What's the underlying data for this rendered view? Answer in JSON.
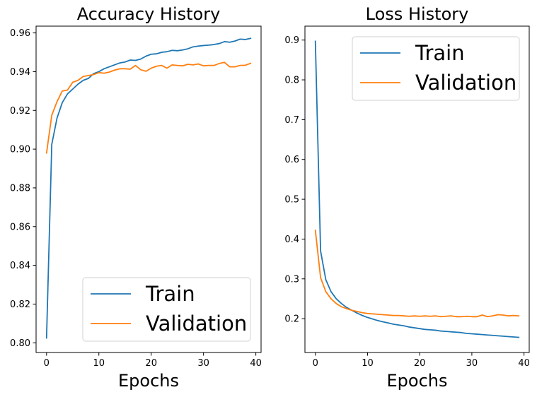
{
  "chart_data": [
    {
      "type": "line",
      "title": "Accuracy History",
      "xlabel": "Epochs",
      "ylabel": "",
      "xlim": [
        -2,
        41
      ],
      "ylim": [
        0.795,
        0.9635
      ],
      "xticks": [
        0,
        10,
        20,
        30,
        40
      ],
      "yticks": [
        0.8,
        0.82,
        0.84,
        0.86,
        0.88,
        0.9,
        0.92,
        0.94,
        0.96
      ],
      "legend_position": "lower-right",
      "x": [
        0,
        1,
        2,
        3,
        4,
        5,
        6,
        7,
        8,
        9,
        10,
        11,
        12,
        13,
        14,
        15,
        16,
        17,
        18,
        19,
        20,
        21,
        22,
        23,
        24,
        25,
        26,
        27,
        28,
        29,
        30,
        31,
        32,
        33,
        34,
        35,
        36,
        37,
        38,
        39
      ],
      "series": [
        {
          "name": "Train",
          "color": "#1f77b4",
          "values": [
            0.8025,
            0.9025,
            0.916,
            0.924,
            0.9285,
            0.931,
            0.9335,
            0.9355,
            0.9365,
            0.939,
            0.94,
            0.9415,
            0.9425,
            0.9435,
            0.9445,
            0.945,
            0.946,
            0.9458,
            0.9465,
            0.948,
            0.949,
            0.9492,
            0.95,
            0.9503,
            0.951,
            0.9508,
            0.9512,
            0.9518,
            0.9528,
            0.9532,
            0.9535,
            0.9537,
            0.954,
            0.9545,
            0.9555,
            0.9552,
            0.9558,
            0.9568,
            0.9566,
            0.9572
          ]
        },
        {
          "name": "Validation",
          "color": "#ff7f0e",
          "values": [
            0.898,
            0.9175,
            0.9245,
            0.93,
            0.9305,
            0.9345,
            0.9355,
            0.9375,
            0.938,
            0.9385,
            0.9395,
            0.9392,
            0.9398,
            0.9408,
            0.9415,
            0.9415,
            0.9413,
            0.9432,
            0.941,
            0.9402,
            0.9418,
            0.9428,
            0.9432,
            0.9418,
            0.9435,
            0.9432,
            0.943,
            0.9438,
            0.9435,
            0.944,
            0.943,
            0.9432,
            0.9432,
            0.9442,
            0.9448,
            0.9425,
            0.9425,
            0.9432,
            0.9433,
            0.9443
          ]
        }
      ]
    },
    {
      "type": "line",
      "title": "Loss History",
      "xlabel": "Epochs",
      "ylabel": "",
      "xlim": [
        -2,
        41
      ],
      "ylim": [
        0.115,
        0.935
      ],
      "xticks": [
        0,
        10,
        20,
        30,
        40
      ],
      "yticks": [
        0.2,
        0.3,
        0.4,
        0.5,
        0.6,
        0.7,
        0.8,
        0.9
      ],
      "legend_position": "upper-right",
      "x": [
        0,
        1,
        2,
        3,
        4,
        5,
        6,
        7,
        8,
        9,
        10,
        11,
        12,
        13,
        14,
        15,
        16,
        17,
        18,
        19,
        20,
        21,
        22,
        23,
        24,
        25,
        26,
        27,
        28,
        29,
        30,
        31,
        32,
        33,
        34,
        35,
        36,
        37,
        38,
        39
      ],
      "series": [
        {
          "name": "Train",
          "color": "#1f77b4",
          "values": [
            0.897,
            0.37,
            0.298,
            0.268,
            0.25,
            0.238,
            0.228,
            0.221,
            0.214,
            0.208,
            0.203,
            0.199,
            0.195,
            0.192,
            0.189,
            0.186,
            0.184,
            0.182,
            0.179,
            0.177,
            0.175,
            0.173,
            0.172,
            0.171,
            0.169,
            0.168,
            0.167,
            0.166,
            0.165,
            0.163,
            0.162,
            0.161,
            0.16,
            0.159,
            0.158,
            0.157,
            0.156,
            0.155,
            0.154,
            0.153
          ]
        },
        {
          "name": "Validation",
          "color": "#ff7f0e",
          "values": [
            0.422,
            0.303,
            0.268,
            0.25,
            0.238,
            0.23,
            0.225,
            0.221,
            0.218,
            0.215,
            0.213,
            0.212,
            0.211,
            0.21,
            0.209,
            0.208,
            0.208,
            0.207,
            0.206,
            0.207,
            0.206,
            0.207,
            0.206,
            0.207,
            0.205,
            0.206,
            0.207,
            0.205,
            0.205,
            0.206,
            0.205,
            0.205,
            0.209,
            0.205,
            0.207,
            0.21,
            0.209,
            0.207,
            0.208,
            0.207
          ]
        }
      ]
    }
  ]
}
